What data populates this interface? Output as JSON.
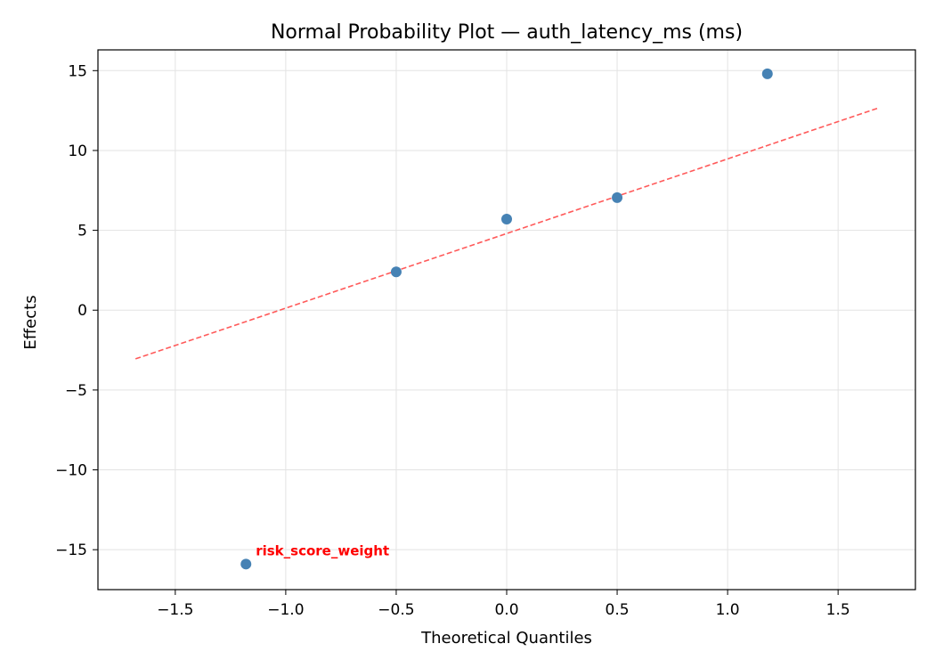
{
  "chart_data": {
    "type": "scatter",
    "title": "Normal Probability Plot — auth_latency_ms (ms)",
    "xlabel": "Theoretical Quantiles",
    "ylabel": "Effects",
    "xlim": [
      -1.85,
      1.85
    ],
    "ylim": [
      -17.5,
      16.3
    ],
    "xticks": [
      -1.5,
      -1.0,
      -0.5,
      0.0,
      0.5,
      1.0,
      1.5
    ],
    "xtick_labels": [
      "−1.5",
      "−1.0",
      "−0.5",
      "0.0",
      "0.5",
      "1.0",
      "1.5"
    ],
    "yticks": [
      -15,
      -10,
      -5,
      0,
      5,
      10,
      15
    ],
    "ytick_labels": [
      "−15",
      "−10",
      "−5",
      "0",
      "5",
      "10",
      "15"
    ],
    "grid": true,
    "points": [
      {
        "x": -1.18,
        "y": -15.9
      },
      {
        "x": -0.5,
        "y": 2.4
      },
      {
        "x": 0.0,
        "y": 5.7
      },
      {
        "x": 0.5,
        "y": 7.05
      },
      {
        "x": 1.18,
        "y": 14.8
      }
    ],
    "reference_line": {
      "x": [
        -1.68,
        1.68
      ],
      "y": [
        -3.05,
        12.65
      ]
    },
    "annotations": [
      {
        "text": "risk_score_weight",
        "x": -1.18,
        "y": -15.9
      }
    ],
    "colors": {
      "points": "#4682b4",
      "reference_line": "#ff5a5a",
      "annotation": "#ff0000",
      "grid": "#e3e3e3"
    }
  }
}
